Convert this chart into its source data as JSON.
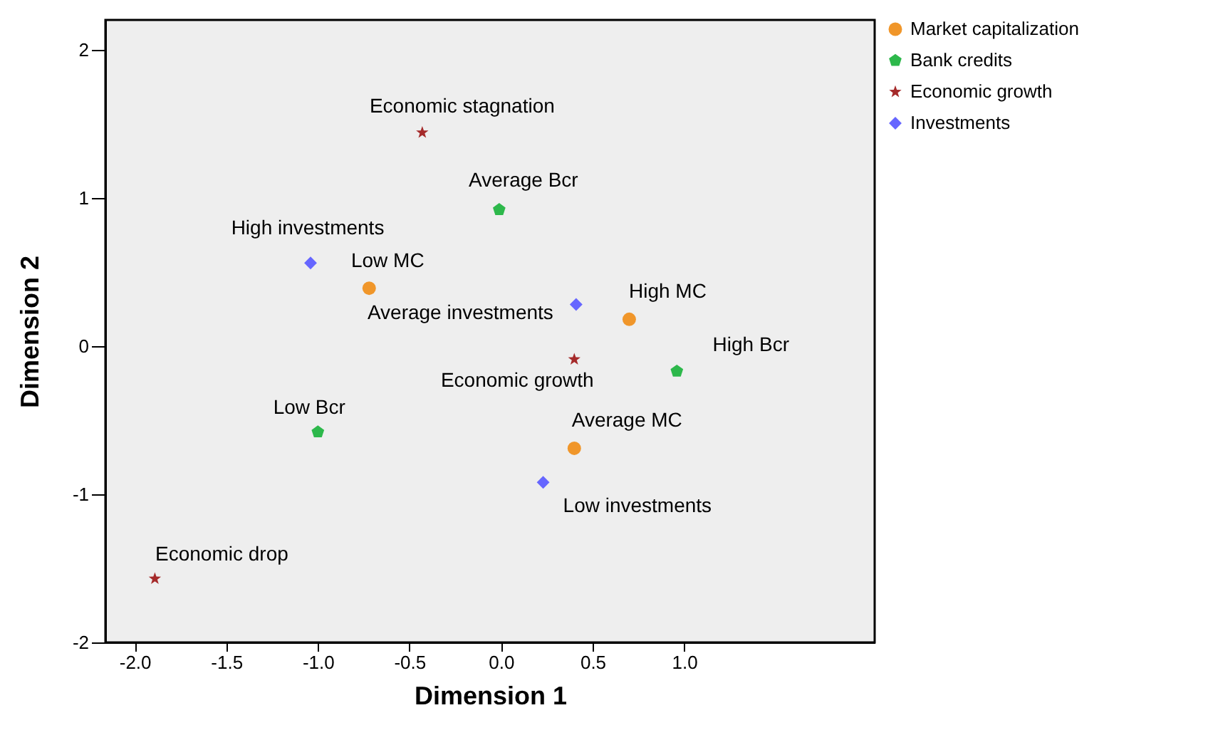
{
  "chart_data": {
    "type": "scatter",
    "xlabel": "Dimension 1",
    "ylabel": "Dimension 2",
    "xlim": [
      -2.16,
      2.04
    ],
    "ylim": [
      -2.0,
      2.2
    ],
    "xticks": [
      {
        "value": -2,
        "label": "-2.0"
      },
      {
        "value": -1.5,
        "label": "-1.5"
      },
      {
        "value": -1,
        "label": "-1.0"
      },
      {
        "value": -0.5,
        "label": "-0.5"
      },
      {
        "value": 0,
        "label": "0.0"
      },
      {
        "value": 0.5,
        "label": "0.5"
      },
      {
        "value": 1,
        "label": "1.0"
      }
    ],
    "yticks": [
      -2,
      -1,
      0,
      1,
      2
    ],
    "grid": false,
    "legend": "right",
    "series": [
      {
        "name": "Market capitalization",
        "color": "#f0962a",
        "marker": "circle",
        "x": [
          -0.72,
          0.7,
          0.4
        ],
        "values": [
          0.39,
          0.18,
          -0.69
        ]
      },
      {
        "name": "Bank credits",
        "color": "#2db84b",
        "x": [
          -0.01,
          0.96,
          -1.0
        ],
        "values": [
          0.92,
          -0.17,
          -0.58
        ]
      },
      {
        "name": "Economic growth",
        "color": "#a52a2a",
        "marker": "star",
        "x": [
          -0.43,
          0.4,
          -1.89
        ],
        "values": [
          1.44,
          -0.09,
          -1.57
        ]
      },
      {
        "name": "Investments",
        "color": "#6666ff",
        "marker": "diamond",
        "x": [
          -1.04,
          0.41,
          0.23
        ],
        "values": [
          0.56,
          0.28,
          -0.92
        ]
      }
    ],
    "annotations": [
      {
        "text": "Economic stagnation",
        "x": -0.43,
        "y": 1.44
      },
      {
        "text": "Average Bcr",
        "x": -0.01,
        "y": 0.92
      },
      {
        "text": "High investments",
        "x": -1.04,
        "y": 0.56
      },
      {
        "text": "Low MC",
        "x": -0.72,
        "y": 0.39
      },
      {
        "text": "Average investments",
        "x": 0.41,
        "y": 0.28
      },
      {
        "text": "High MC",
        "x": 0.7,
        "y": 0.18
      },
      {
        "text": "High Bcr",
        "x": 0.96,
        "y": -0.17
      },
      {
        "text": "Economic growth",
        "x": 0.4,
        "y": -0.09
      },
      {
        "text": "Low Bcr",
        "x": -1.0,
        "y": -0.58
      },
      {
        "text": "Average MC",
        "x": 0.4,
        "y": -0.69
      },
      {
        "text": "Low investments",
        "x": 0.23,
        "y": -0.92
      },
      {
        "text": "Economic drop",
        "x": -1.89,
        "y": -1.57
      }
    ]
  }
}
